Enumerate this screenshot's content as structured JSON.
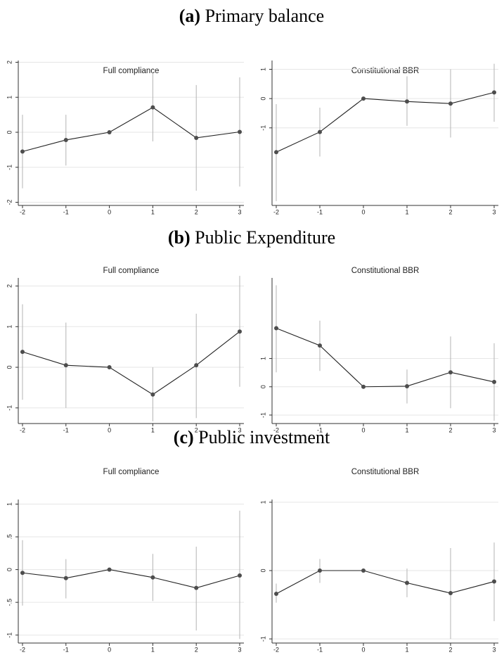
{
  "sections": [
    {
      "letter": "(a)",
      "title": "Primary balance"
    },
    {
      "letter": "(b)",
      "title": "Public Expenditure"
    },
    {
      "letter": "(c)",
      "title": "Public investment"
    }
  ],
  "chart_data": [
    {
      "type": "line",
      "title": "Full compliance",
      "x": [
        -2,
        -1,
        0,
        1,
        2,
        3
      ],
      "xlim": [
        -2,
        3
      ],
      "xticks": [
        -2,
        -1,
        0,
        1,
        2,
        3
      ],
      "values": [
        -0.55,
        -0.22,
        0,
        0.71,
        -0.16,
        0.01
      ],
      "ci_low": [
        -1.6,
        -0.95,
        0,
        -0.26,
        -1.67,
        -1.55
      ],
      "ci_high": [
        0.5,
        0.5,
        0,
        1.7,
        1.35,
        1.57
      ],
      "ylim": [
        -2.05,
        2.05
      ],
      "yticks": [
        -2,
        -1,
        0,
        1,
        2
      ],
      "grid": true,
      "color": "#4d4d4d"
    },
    {
      "type": "line",
      "title": "Constitutional BBR",
      "x": [
        -2,
        -1,
        0,
        1,
        2,
        3
      ],
      "xlim": [
        -2,
        3
      ],
      "xticks": [
        -2,
        -1,
        0,
        1,
        2,
        3
      ],
      "values": [
        -1.83,
        -1.14,
        0,
        -0.1,
        -0.17,
        0.21
      ],
      "ci_low": [
        -3.5,
        -1.98,
        0,
        -0.93,
        -1.33,
        -0.79
      ],
      "ci_high": [
        -0.19,
        -0.31,
        0,
        0.76,
        1.0,
        1.19
      ],
      "ylim": [
        -3.6,
        1.3
      ],
      "yticks": [
        -1,
        0,
        1
      ],
      "grid": true,
      "color": "#4d4d4d"
    },
    {
      "type": "line",
      "title": "Full compliance",
      "x": [
        -2,
        -1,
        0,
        1,
        2,
        3
      ],
      "xlim": [
        -2,
        3
      ],
      "xticks": [
        -2,
        -1,
        0,
        1,
        2,
        3
      ],
      "values": [
        0.38,
        0.05,
        0,
        -0.67,
        0.05,
        0.88
      ],
      "ci_low": [
        -0.8,
        -1.0,
        0,
        -1.33,
        -1.25,
        -0.48
      ],
      "ci_high": [
        1.55,
        1.1,
        0,
        0,
        1.32,
        2.25
      ],
      "ylim": [
        -1.35,
        2.2
      ],
      "yticks": [
        -1,
        0,
        1,
        2
      ],
      "grid": true,
      "color": "#4d4d4d"
    },
    {
      "type": "line",
      "title": "Constitutional BBR",
      "x": [
        -2,
        -1,
        0,
        1,
        2,
        3
      ],
      "xlim": [
        -2,
        3
      ],
      "xticks": [
        -2,
        -1,
        0,
        1,
        2,
        3
      ],
      "values": [
        2.07,
        1.46,
        0,
        0.02,
        0.51,
        0.17
      ],
      "ci_low": [
        0.51,
        0.56,
        0,
        -0.59,
        -0.76,
        -1.2
      ],
      "ci_high": [
        3.59,
        2.34,
        0,
        0.61,
        1.78,
        1.54
      ],
      "ylim": [
        -1.25,
        3.85
      ],
      "yticks": [
        -1,
        0,
        1
      ],
      "grid": true,
      "color": "#4d4d4d"
    },
    {
      "type": "line",
      "title": "Full compliance",
      "x": [
        -2,
        -1,
        0,
        1,
        2,
        3
      ],
      "xlim": [
        -2,
        3
      ],
      "xticks": [
        -2,
        -1,
        0,
        1,
        2,
        3
      ],
      "values": [
        -0.05,
        -0.13,
        0,
        -0.12,
        -0.28,
        -0.09
      ],
      "ci_low": [
        -0.55,
        -0.44,
        0,
        -0.48,
        -0.93,
        -1.06
      ],
      "ci_high": [
        0.45,
        0.16,
        0,
        0.24,
        0.35,
        0.9
      ],
      "ylim": [
        -1.1,
        1.07
      ],
      "yticks": [
        -1,
        {
          "value": -0.5,
          "label": "-.5"
        },
        0,
        {
          "value": 0.5,
          "label": ".5"
        },
        1
      ],
      "grid": true,
      "color": "#4d4d4d"
    },
    {
      "type": "line",
      "title": "Constitutional BBR",
      "x": [
        -2,
        -1,
        0,
        1,
        2,
        3
      ],
      "xlim": [
        -2,
        3
      ],
      "xticks": [
        -2,
        -1,
        0,
        1,
        2,
        3
      ],
      "values": [
        -0.34,
        0,
        0,
        -0.18,
        -0.33,
        -0.16
      ],
      "ci_low": [
        -0.47,
        -0.18,
        0,
        -0.39,
        -1.0,
        -0.74
      ],
      "ci_high": [
        -0.19,
        0.17,
        0,
        0.03,
        0.33,
        0.41
      ],
      "ylim": [
        -1.04,
        1.04
      ],
      "yticks": [
        -1,
        0,
        1
      ],
      "grid": true,
      "color": "#4d4d4d"
    }
  ]
}
